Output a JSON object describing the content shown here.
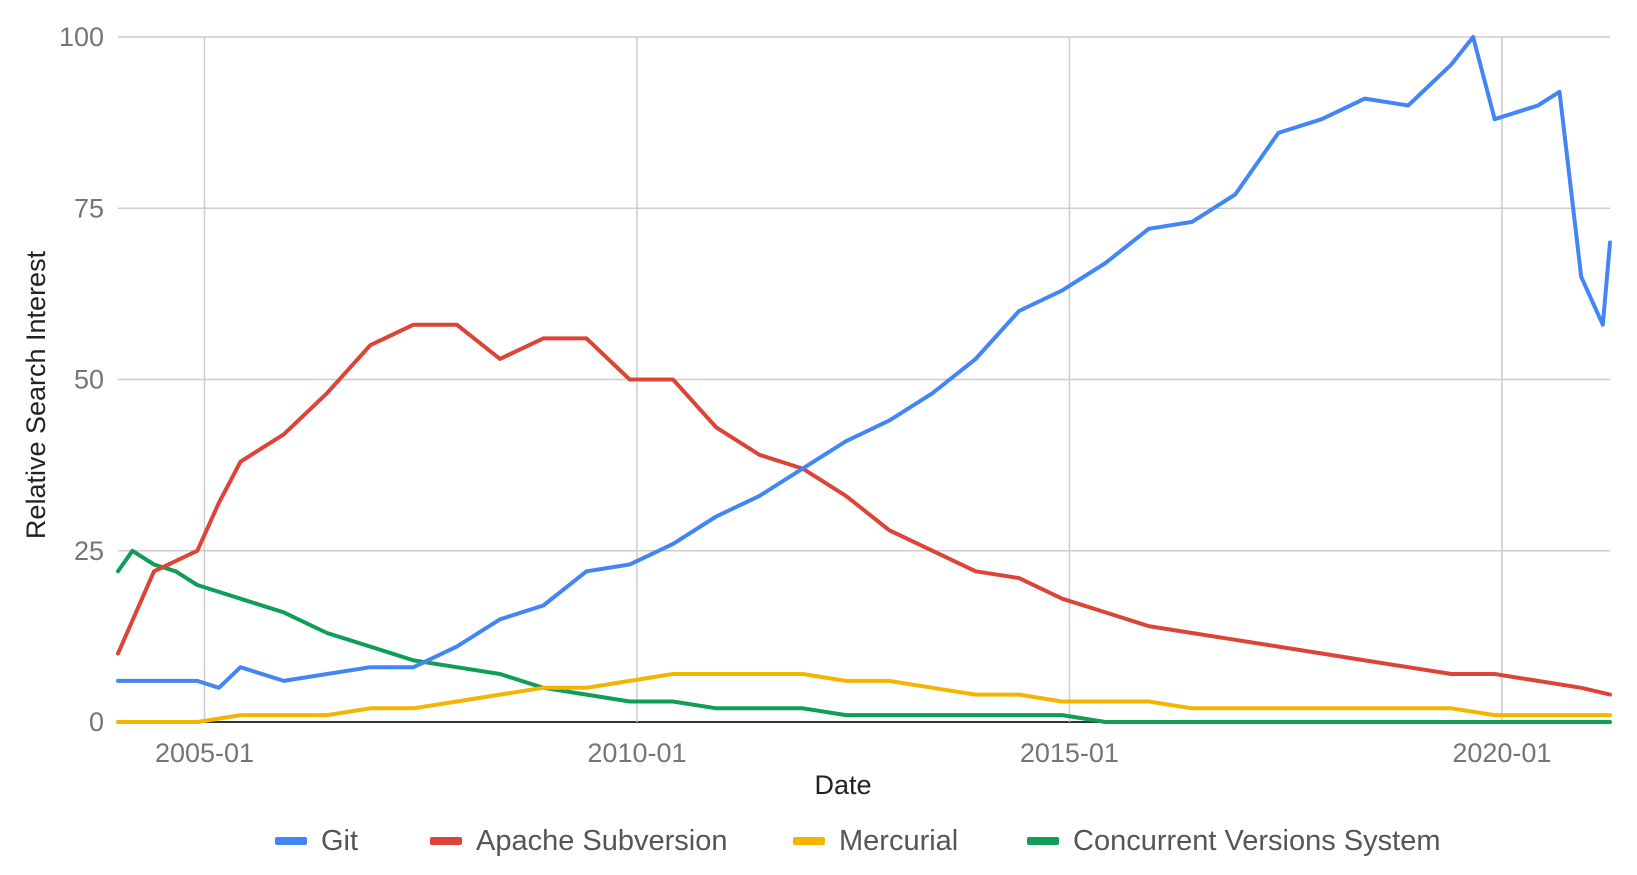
{
  "chart_data": {
    "type": "line",
    "title": "",
    "xlabel": "Date",
    "ylabel": "Relative Search Interest",
    "ylim": [
      0,
      100
    ],
    "xlim": [
      "2004-01",
      "2021-04"
    ],
    "x_ticks": [
      "2005-01",
      "2010-01",
      "2015-01",
      "2020-01"
    ],
    "y_ticks": [
      0,
      25,
      50,
      75,
      100
    ],
    "grid": true,
    "legend_position": "bottom",
    "series": [
      {
        "name": "Git",
        "color": "#4285F4",
        "points": [
          [
            "2004-01",
            6
          ],
          [
            "2004-06",
            6
          ],
          [
            "2004-12",
            6
          ],
          [
            "2005-03",
            5
          ],
          [
            "2005-06",
            8
          ],
          [
            "2005-12",
            6
          ],
          [
            "2006-06",
            7
          ],
          [
            "2006-12",
            8
          ],
          [
            "2007-06",
            8
          ],
          [
            "2007-12",
            11
          ],
          [
            "2008-06",
            15
          ],
          [
            "2008-12",
            17
          ],
          [
            "2009-06",
            22
          ],
          [
            "2009-12",
            23
          ],
          [
            "2010-06",
            26
          ],
          [
            "2010-12",
            30
          ],
          [
            "2011-06",
            33
          ],
          [
            "2011-12",
            37
          ],
          [
            "2012-06",
            41
          ],
          [
            "2012-12",
            44
          ],
          [
            "2013-06",
            48
          ],
          [
            "2013-12",
            53
          ],
          [
            "2014-06",
            60
          ],
          [
            "2014-12",
            63
          ],
          [
            "2015-06",
            67
          ],
          [
            "2015-12",
            72
          ],
          [
            "2016-06",
            73
          ],
          [
            "2016-12",
            77
          ],
          [
            "2017-06",
            86
          ],
          [
            "2017-12",
            88
          ],
          [
            "2018-06",
            91
          ],
          [
            "2018-12",
            90
          ],
          [
            "2019-06",
            96
          ],
          [
            "2019-09",
            100
          ],
          [
            "2019-12",
            88
          ],
          [
            "2020-06",
            90
          ],
          [
            "2020-09",
            92
          ],
          [
            "2020-12",
            65
          ],
          [
            "2021-03",
            58
          ],
          [
            "2021-04",
            70
          ]
        ]
      },
      {
        "name": "Apache Subversion",
        "color": "#DB4437",
        "points": [
          [
            "2004-01",
            10
          ],
          [
            "2004-06",
            22
          ],
          [
            "2004-12",
            25
          ],
          [
            "2005-03",
            32
          ],
          [
            "2005-06",
            38
          ],
          [
            "2005-12",
            42
          ],
          [
            "2006-06",
            48
          ],
          [
            "2006-12",
            55
          ],
          [
            "2007-06",
            58
          ],
          [
            "2007-12",
            58
          ],
          [
            "2008-06",
            53
          ],
          [
            "2008-12",
            56
          ],
          [
            "2009-06",
            56
          ],
          [
            "2009-12",
            50
          ],
          [
            "2010-06",
            50
          ],
          [
            "2010-12",
            43
          ],
          [
            "2011-06",
            39
          ],
          [
            "2011-12",
            37
          ],
          [
            "2012-06",
            33
          ],
          [
            "2012-12",
            28
          ],
          [
            "2013-06",
            25
          ],
          [
            "2013-12",
            22
          ],
          [
            "2014-06",
            21
          ],
          [
            "2014-12",
            18
          ],
          [
            "2015-06",
            16
          ],
          [
            "2015-12",
            14
          ],
          [
            "2016-06",
            13
          ],
          [
            "2016-12",
            12
          ],
          [
            "2017-06",
            11
          ],
          [
            "2017-12",
            10
          ],
          [
            "2018-06",
            9
          ],
          [
            "2018-12",
            8
          ],
          [
            "2019-06",
            7
          ],
          [
            "2019-12",
            7
          ],
          [
            "2020-06",
            6
          ],
          [
            "2020-12",
            5
          ],
          [
            "2021-04",
            4
          ]
        ]
      },
      {
        "name": "Mercurial",
        "color": "#F4B400",
        "points": [
          [
            "2004-01",
            0
          ],
          [
            "2004-12",
            0
          ],
          [
            "2005-06",
            1
          ],
          [
            "2005-12",
            1
          ],
          [
            "2006-06",
            1
          ],
          [
            "2006-12",
            2
          ],
          [
            "2007-06",
            2
          ],
          [
            "2007-12",
            3
          ],
          [
            "2008-06",
            4
          ],
          [
            "2008-12",
            5
          ],
          [
            "2009-06",
            5
          ],
          [
            "2009-12",
            6
          ],
          [
            "2010-06",
            7
          ],
          [
            "2010-12",
            7
          ],
          [
            "2011-06",
            7
          ],
          [
            "2011-12",
            7
          ],
          [
            "2012-06",
            6
          ],
          [
            "2012-12",
            6
          ],
          [
            "2013-06",
            5
          ],
          [
            "2013-12",
            4
          ],
          [
            "2014-06",
            4
          ],
          [
            "2014-12",
            3
          ],
          [
            "2015-06",
            3
          ],
          [
            "2015-12",
            3
          ],
          [
            "2016-06",
            2
          ],
          [
            "2016-12",
            2
          ],
          [
            "2017-06",
            2
          ],
          [
            "2017-12",
            2
          ],
          [
            "2018-06",
            2
          ],
          [
            "2018-12",
            2
          ],
          [
            "2019-06",
            2
          ],
          [
            "2019-12",
            1
          ],
          [
            "2020-06",
            1
          ],
          [
            "2020-12",
            1
          ],
          [
            "2021-04",
            1
          ]
        ]
      },
      {
        "name": "Concurrent Versions System",
        "color": "#0F9D58",
        "points": [
          [
            "2004-01",
            22
          ],
          [
            "2004-03",
            25
          ],
          [
            "2004-06",
            23
          ],
          [
            "2004-09",
            22
          ],
          [
            "2004-12",
            20
          ],
          [
            "2005-03",
            19
          ],
          [
            "2005-06",
            18
          ],
          [
            "2005-12",
            16
          ],
          [
            "2006-06",
            13
          ],
          [
            "2006-12",
            11
          ],
          [
            "2007-06",
            9
          ],
          [
            "2007-12",
            8
          ],
          [
            "2008-06",
            7
          ],
          [
            "2008-12",
            5
          ],
          [
            "2009-06",
            4
          ],
          [
            "2009-12",
            3
          ],
          [
            "2010-06",
            3
          ],
          [
            "2010-12",
            2
          ],
          [
            "2011-06",
            2
          ],
          [
            "2011-12",
            2
          ],
          [
            "2012-06",
            1
          ],
          [
            "2012-12",
            1
          ],
          [
            "2013-06",
            1
          ],
          [
            "2013-12",
            1
          ],
          [
            "2014-06",
            1
          ],
          [
            "2014-12",
            1
          ],
          [
            "2015-06",
            0
          ],
          [
            "2015-12",
            0
          ],
          [
            "2016-06",
            0
          ],
          [
            "2016-12",
            0
          ],
          [
            "2017-06",
            0
          ],
          [
            "2017-12",
            0
          ],
          [
            "2018-06",
            0
          ],
          [
            "2018-12",
            0
          ],
          [
            "2019-06",
            0
          ],
          [
            "2019-12",
            0
          ],
          [
            "2020-06",
            0
          ],
          [
            "2020-12",
            0
          ],
          [
            "2021-04",
            0
          ]
        ]
      }
    ]
  }
}
